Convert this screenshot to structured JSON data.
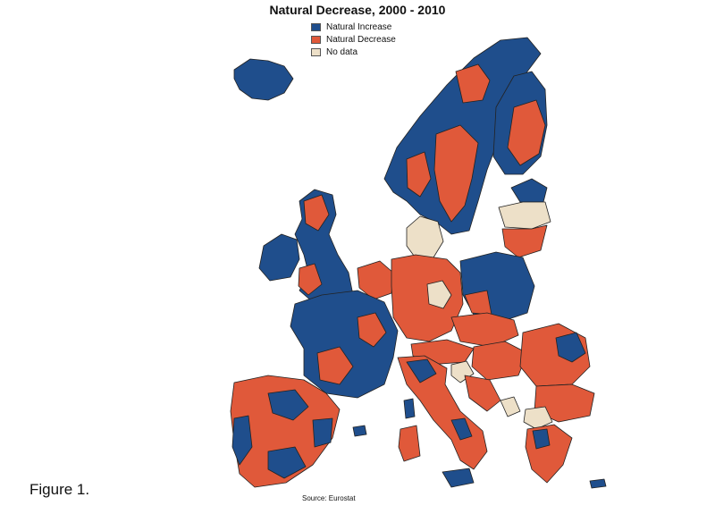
{
  "title": "Natural Decrease, 2000 - 2010",
  "legend": [
    {
      "label": "Natural Increase",
      "color": "#1f4e8c"
    },
    {
      "label": "Natural Decrease",
      "color": "#e0593a"
    },
    {
      "label": "No data",
      "color": "#ede0c8"
    }
  ],
  "source": "Source: Eurostat",
  "caption": "Figure 1.",
  "colors": {
    "border": "#222222",
    "background": "#ffffff"
  }
}
